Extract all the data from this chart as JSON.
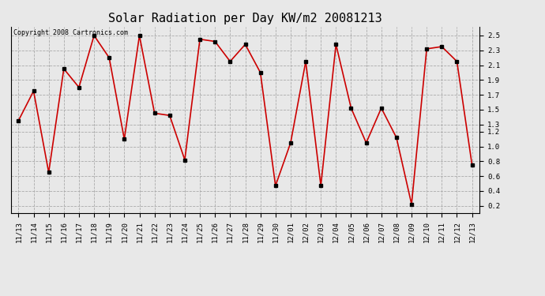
{
  "title": "Solar Radiation per Day KW/m2 20081213",
  "copyright": "Copyright 2008 Cartronics.com",
  "dates": [
    "11/13",
    "11/14",
    "11/15",
    "11/16",
    "11/17",
    "11/18",
    "11/19",
    "11/20",
    "11/21",
    "11/22",
    "11/23",
    "11/24",
    "11/25",
    "11/26",
    "11/27",
    "11/28",
    "11/29",
    "11/30",
    "12/01",
    "12/02",
    "12/03",
    "12/04",
    "12/05",
    "12/06",
    "12/07",
    "12/08",
    "12/09",
    "12/10",
    "12/11",
    "12/12",
    "12/13"
  ],
  "values": [
    1.35,
    1.75,
    0.65,
    2.05,
    1.8,
    2.5,
    2.2,
    1.1,
    2.5,
    1.45,
    1.42,
    0.82,
    2.45,
    2.42,
    2.15,
    2.38,
    2.0,
    0.47,
    1.05,
    2.15,
    0.47,
    2.38,
    1.52,
    1.05,
    1.52,
    1.12,
    0.22,
    2.32,
    2.35,
    2.15,
    0.75
  ],
  "line_color": "#cc0000",
  "marker_color": "#000000",
  "bg_color": "#e8e8e8",
  "grid_color": "#aaaaaa",
  "ylim_min": 0.1,
  "ylim_max": 2.62,
  "yticks": [
    0.2,
    0.4,
    0.6,
    0.8,
    1.0,
    1.2,
    1.3,
    1.5,
    1.7,
    1.9,
    2.1,
    2.3,
    2.5
  ],
  "title_fontsize": 11,
  "tick_fontsize": 6.5,
  "copyright_fontsize": 6
}
